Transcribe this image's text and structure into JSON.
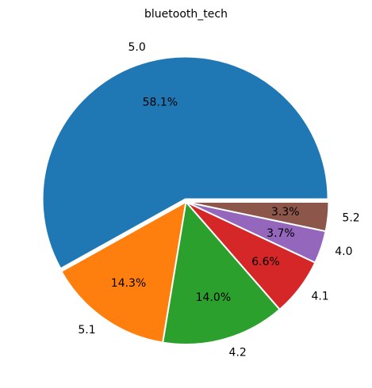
{
  "chart_data": {
    "type": "pie",
    "title": "bluetooth_tech",
    "start_angle_deg": 0,
    "direction": "counterclockwise",
    "slices": [
      {
        "label": "5.0",
        "percent": 58.1,
        "pct_text": "58.1%",
        "color": "#1f77b4",
        "exploded": true
      },
      {
        "label": "5.1",
        "percent": 14.3,
        "pct_text": "14.3%",
        "color": "#ff7f0e",
        "exploded": false
      },
      {
        "label": "4.2",
        "percent": 14.0,
        "pct_text": "14.0%",
        "color": "#2ca02c",
        "exploded": false
      },
      {
        "label": "4.1",
        "percent": 6.6,
        "pct_text": "6.6%",
        "color": "#d62728",
        "exploded": false
      },
      {
        "label": "4.0",
        "percent": 3.7,
        "pct_text": "3.7%",
        "color": "#9467bd",
        "exploded": false
      },
      {
        "label": "5.2",
        "percent": 3.3,
        "pct_text": "3.3%",
        "color": "#8c564b",
        "exploded": false
      }
    ]
  }
}
